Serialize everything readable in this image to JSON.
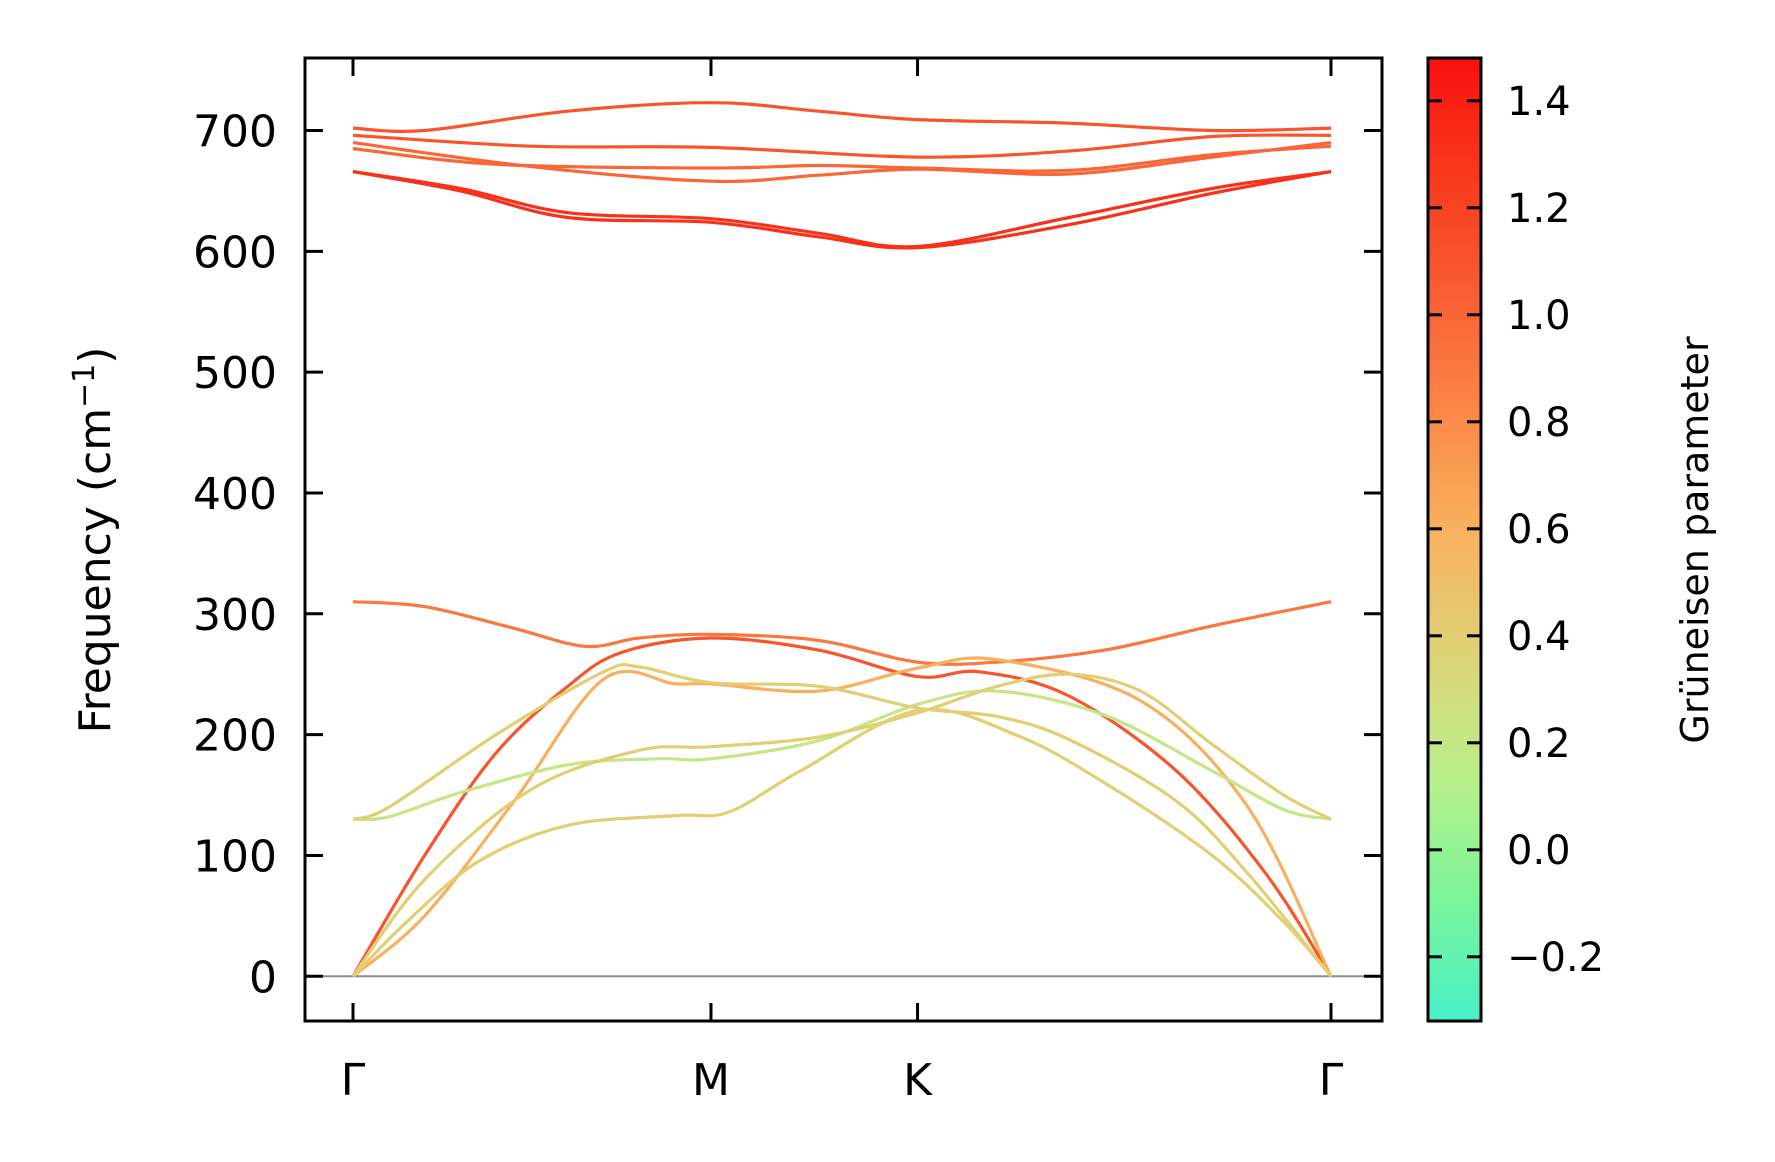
{
  "chart_data": {
    "type": "line",
    "title": "",
    "xlabel": "",
    "ylabel": "Frequency (cm",
    "ylabel_sup": "−1",
    "ylabel_close": ")",
    "ylim": [
      -37,
      760
    ],
    "yticks": [
      0,
      100,
      200,
      300,
      400,
      500,
      600,
      700
    ],
    "x_range": [
      0,
      2.732
    ],
    "kpoints": [
      {
        "label": "Γ",
        "x": 0
      },
      {
        "label": "M",
        "x": 1.0
      },
      {
        "label": "K",
        "x": 1.577
      },
      {
        "label": "Γ",
        "x": 2.732
      }
    ],
    "zero_line": true,
    "colorbar": {
      "label": "Grüneisen parameter",
      "range": [
        -0.32,
        1.48
      ],
      "ticks": [
        -0.2,
        0.0,
        0.2,
        0.4,
        0.6,
        0.8,
        1.0,
        1.2,
        1.4
      ],
      "tick_labels": [
        "−0.2",
        "0.0",
        "0.2",
        "0.4",
        "0.6",
        "0.8",
        "1.0",
        "1.2",
        "1.4"
      ],
      "colors": [
        "#48f0c8",
        "#7af59a",
        "#b8f08a",
        "#dcd478",
        "#f8b460",
        "#fc8a48",
        "#f86034",
        "#f83a1c",
        "#f81010"
      ]
    },
    "series": [
      {
        "gamma": 1.3,
        "points": [
          [
            0,
            666
          ],
          [
            0.3,
            652
          ],
          [
            0.6,
            632
          ],
          [
            1.0,
            627
          ],
          [
            1.3,
            615
          ],
          [
            1.577,
            604
          ],
          [
            2.0,
            628
          ],
          [
            2.4,
            652
          ],
          [
            2.732,
            666
          ]
        ]
      },
      {
        "gamma": 1.3,
        "points": [
          [
            0,
            666
          ],
          [
            0.3,
            650
          ],
          [
            0.6,
            628
          ],
          [
            1.0,
            624
          ],
          [
            1.3,
            612
          ],
          [
            1.577,
            603
          ],
          [
            2.0,
            622
          ],
          [
            2.4,
            648
          ],
          [
            2.732,
            666
          ]
        ]
      },
      {
        "gamma": 1.0,
        "points": [
          [
            0,
            685
          ],
          [
            0.4,
            672
          ],
          [
            1.0,
            669
          ],
          [
            1.3,
            671
          ],
          [
            1.577,
            669
          ],
          [
            2.0,
            667
          ],
          [
            2.4,
            680
          ],
          [
            2.732,
            687
          ]
        ]
      },
      {
        "gamma": 1.0,
        "points": [
          [
            0,
            690
          ],
          [
            0.5,
            670
          ],
          [
            1.0,
            658
          ],
          [
            1.3,
            663
          ],
          [
            1.577,
            668
          ],
          [
            2.0,
            664
          ],
          [
            2.4,
            678
          ],
          [
            2.732,
            690
          ]
        ]
      },
      {
        "gamma": 1.1,
        "points": [
          [
            0,
            696
          ],
          [
            0.5,
            687
          ],
          [
            1.0,
            686
          ],
          [
            1.577,
            678
          ],
          [
            2.0,
            683
          ],
          [
            2.4,
            695
          ],
          [
            2.732,
            696
          ]
        ]
      },
      {
        "gamma": 1.1,
        "points": [
          [
            0,
            702
          ],
          [
            0.2,
            700
          ],
          [
            0.6,
            716
          ],
          [
            1.0,
            723
          ],
          [
            1.3,
            716
          ],
          [
            1.577,
            709
          ],
          [
            2.0,
            706
          ],
          [
            2.4,
            700
          ],
          [
            2.732,
            702
          ]
        ]
      },
      {
        "gamma": 0.9,
        "points": [
          [
            0,
            310
          ],
          [
            0.2,
            306
          ],
          [
            0.45,
            288
          ],
          [
            0.65,
            273
          ],
          [
            0.8,
            280
          ],
          [
            1.0,
            283
          ],
          [
            1.3,
            278
          ],
          [
            1.577,
            260
          ],
          [
            1.8,
            260
          ],
          [
            2.1,
            270
          ],
          [
            2.4,
            290
          ],
          [
            2.732,
            310
          ]
        ]
      },
      {
        "gamma": 1.1,
        "points": [
          [
            0,
            0
          ],
          [
            0.2,
            100
          ],
          [
            0.4,
            185
          ],
          [
            0.6,
            240
          ],
          [
            0.75,
            268
          ],
          [
            1.0,
            280
          ],
          [
            1.3,
            270
          ],
          [
            1.577,
            248
          ],
          [
            1.75,
            252
          ],
          [
            2.0,
            232
          ],
          [
            2.3,
            170
          ],
          [
            2.55,
            85
          ],
          [
            2.732,
            0
          ]
        ]
      },
      {
        "gamma": 0.6,
        "points": [
          [
            0,
            0
          ],
          [
            0.2,
            50
          ],
          [
            0.45,
            145
          ],
          [
            0.7,
            246
          ],
          [
            0.9,
            242
          ],
          [
            1.0,
            242
          ],
          [
            1.3,
            236
          ],
          [
            1.577,
            255
          ],
          [
            1.8,
            262
          ],
          [
            2.2,
            228
          ],
          [
            2.5,
            140
          ],
          [
            2.732,
            0
          ]
        ]
      },
      {
        "gamma": 0.2,
        "points": [
          [
            0,
            130
          ],
          [
            0.1,
            132
          ],
          [
            0.3,
            152
          ],
          [
            0.6,
            175
          ],
          [
            0.85,
            180
          ],
          [
            1.0,
            180
          ],
          [
            1.3,
            195
          ],
          [
            1.577,
            225
          ],
          [
            1.8,
            236
          ],
          [
            2.1,
            216
          ],
          [
            2.4,
            170
          ],
          [
            2.6,
            138
          ],
          [
            2.732,
            130
          ]
        ]
      },
      {
        "gamma": 0.4,
        "points": [
          [
            0,
            130
          ],
          [
            0.1,
            140
          ],
          [
            0.4,
            200
          ],
          [
            0.7,
            252
          ],
          [
            0.8,
            256
          ],
          [
            1.0,
            243
          ],
          [
            1.3,
            240
          ],
          [
            1.577,
            222
          ],
          [
            1.8,
            215
          ],
          [
            2.0,
            196
          ],
          [
            2.3,
            145
          ],
          [
            2.5,
            85
          ],
          [
            2.732,
            0
          ]
        ]
      },
      {
        "gamma": 0.4,
        "points": [
          [
            0,
            0
          ],
          [
            0.2,
            80
          ],
          [
            0.5,
            155
          ],
          [
            0.8,
            187
          ],
          [
            1.0,
            190
          ],
          [
            1.3,
            198
          ],
          [
            1.577,
            218
          ],
          [
            1.8,
            240
          ],
          [
            2.0,
            250
          ],
          [
            2.2,
            236
          ],
          [
            2.4,
            192
          ],
          [
            2.6,
            150
          ],
          [
            2.732,
            130
          ]
        ]
      },
      {
        "gamma": 0.4,
        "points": [
          [
            0,
            0
          ],
          [
            0.15,
            45
          ],
          [
            0.35,
            95
          ],
          [
            0.6,
            125
          ],
          [
            0.9,
            133
          ],
          [
            1.05,
            136
          ],
          [
            1.25,
            170
          ],
          [
            1.577,
            220
          ],
          [
            1.85,
            200
          ],
          [
            2.1,
            160
          ],
          [
            2.4,
            100
          ],
          [
            2.6,
            45
          ],
          [
            2.732,
            0
          ]
        ]
      }
    ]
  }
}
